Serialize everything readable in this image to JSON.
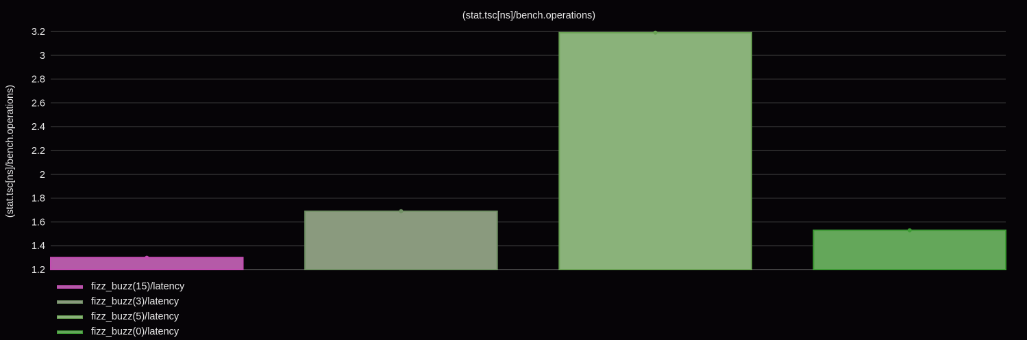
{
  "chart_data": {
    "type": "bar",
    "title": "(stat.tsc[ns]/bench.operations)",
    "xlabel": "",
    "ylabel": "(stat.tsc[ns]/bench.operations)",
    "ylim": [
      1.2,
      3.2
    ],
    "yticks": [
      "1.2",
      "1.4",
      "1.6",
      "1.8",
      "2",
      "2.2",
      "2.4",
      "2.6",
      "2.8",
      "3",
      "3.2"
    ],
    "grid": true,
    "legend_placement": "bottom-left",
    "series": [
      {
        "name": "fizz_buzz(15)/latency",
        "value": 1.3,
        "fill": "#b55aa8",
        "stroke": "#c24cb1"
      },
      {
        "name": "fizz_buzz(3)/latency",
        "value": 1.69,
        "fill": "#8a9a7e",
        "stroke": "#6f8f63"
      },
      {
        "name": "fizz_buzz(5)/latency",
        "value": 3.19,
        "fill": "#8ab27a",
        "stroke": "#6aa254"
      },
      {
        "name": "fizz_buzz(0)/latency",
        "value": 1.53,
        "fill": "#64a75a",
        "stroke": "#3d9a34"
      }
    ]
  }
}
